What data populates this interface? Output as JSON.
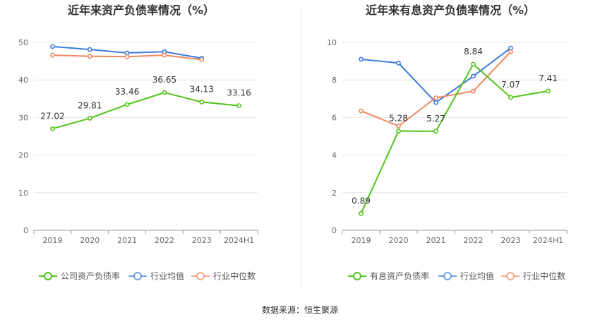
{
  "source_text": "数据来源：恒生聚源",
  "chart_data": [
    {
      "type": "line",
      "title": "近年来资产负债率情况（%）",
      "categories": [
        "2019",
        "2020",
        "2021",
        "2022",
        "2023",
        "2024H1"
      ],
      "ylim": [
        0,
        50
      ],
      "yticks": [
        0,
        10,
        20,
        30,
        40,
        50
      ],
      "grid": true,
      "legend_position": "bottom",
      "series": [
        {
          "name": "公司资产负债率",
          "color": "#52c41a",
          "values": [
            27.02,
            29.81,
            33.46,
            36.65,
            34.13,
            33.16
          ],
          "labels": [
            "27.02",
            "29.81",
            "33.46",
            "36.65",
            "34.13",
            "33.16"
          ]
        },
        {
          "name": "行业均值",
          "color": "#3d7be0",
          "values": [
            48.9,
            48.1,
            47.2,
            47.5,
            45.8,
            null
          ]
        },
        {
          "name": "行业中位数",
          "color": "#f08860",
          "values": [
            46.6,
            46.3,
            46.2,
            46.6,
            45.4,
            null
          ]
        }
      ]
    },
    {
      "type": "line",
      "title": "近年来有息资产负债率情况（%）",
      "categories": [
        "2019",
        "2020",
        "2021",
        "2022",
        "2023",
        "2024H1"
      ],
      "ylim": [
        0,
        10
      ],
      "yticks": [
        0,
        2,
        4,
        6,
        8,
        10
      ],
      "grid": true,
      "legend_position": "bottom",
      "series": [
        {
          "name": "有息资产负债率",
          "color": "#52c41a",
          "values": [
            0.89,
            5.28,
            5.27,
            8.84,
            7.07,
            7.41
          ],
          "labels": [
            "0.89",
            "5.28",
            "5.27",
            "8.84",
            "7.07",
            "7.41"
          ]
        },
        {
          "name": "行业均值",
          "color": "#3d7be0",
          "values": [
            9.1,
            8.9,
            6.8,
            8.2,
            9.7,
            null
          ]
        },
        {
          "name": "行业中位数",
          "color": "#f08860",
          "values": [
            6.35,
            5.55,
            7.05,
            7.4,
            9.5,
            null
          ]
        }
      ]
    }
  ]
}
